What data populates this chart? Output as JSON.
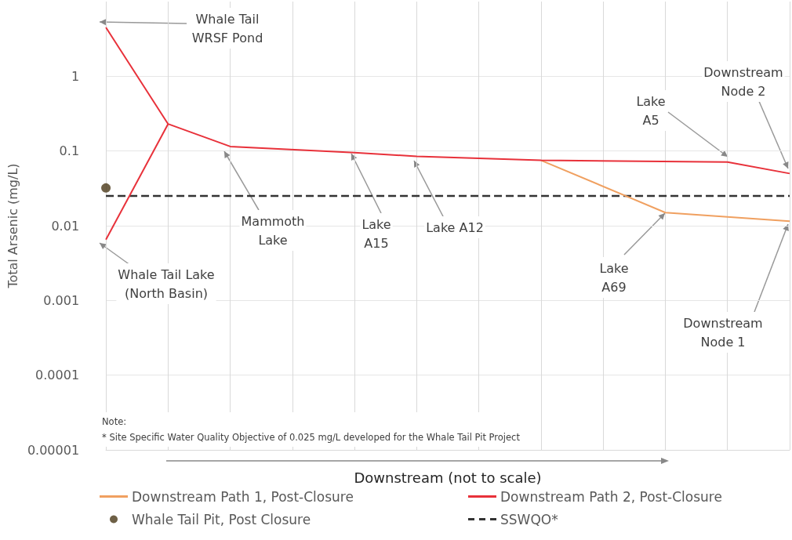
{
  "chart_data": {
    "type": "line",
    "xlabel": "Downstream (not to scale)",
    "ylabel": "Total Arsenic (mg/L)",
    "categories": [
      null,
      null,
      null,
      null,
      null,
      null,
      null,
      null,
      null,
      null,
      null,
      null
    ],
    "log": true,
    "ylim": [
      1e-05,
      10
    ],
    "yticks": [
      {
        "value": 1e-05,
        "label": "0.00001"
      },
      0.0001,
      0.001,
      0.01,
      0.1,
      1
    ],
    "grid": true,
    "legend": "bottom",
    "marker": "none",
    "series": [
      {
        "name": "Downstream Path 1, Post-Closure",
        "color": "#f0a060",
        "values": [
          null,
          null,
          null,
          null,
          null,
          null,
          null,
          0.075,
          null,
          0.015,
          null,
          0.0115
        ]
      },
      {
        "name": "Downstream Path 2, Post-Closure",
        "color": "#e8313a",
        "values": [
          4.5,
          0.23,
          0.115,
          null,
          0.095,
          0.085,
          null,
          0.075,
          null,
          null,
          0.071,
          0.05
        ]
      },
      {
        "color": "#e8313a",
        "values": [
          0.0065,
          0.23,
          null,
          null,
          null,
          null,
          null,
          null,
          null,
          null,
          null,
          null
        ]
      },
      {
        "name": "Whale Tail Pit, Post Closure",
        "type": "scatter",
        "marker": "circle",
        "color": "#4a3818",
        "values": [
          0.032,
          null,
          null,
          null,
          null,
          null,
          null,
          null,
          null,
          null,
          null,
          null
        ]
      }
    ],
    "ref_lines": [
      {
        "axis": "y",
        "value": 0.025,
        "label": "SSWQO*",
        "color": "#333333",
        "line_style": "dashed"
      }
    ],
    "annotations": [
      "Whale Tail\nWRSF Pond",
      "Whale Tail Lake\n(North Basin)",
      "Mammoth\nLake",
      "Lake\nA15",
      "Lake A12",
      "Lake\nA69",
      "Lake\nA5",
      "Downstream\nNode 2",
      "Downstream\nNode 1",
      "Note:\n* Site Specific Water Quality Objective of 0.025 mg/L developed for the Whale Tail Pit Project"
    ]
  }
}
